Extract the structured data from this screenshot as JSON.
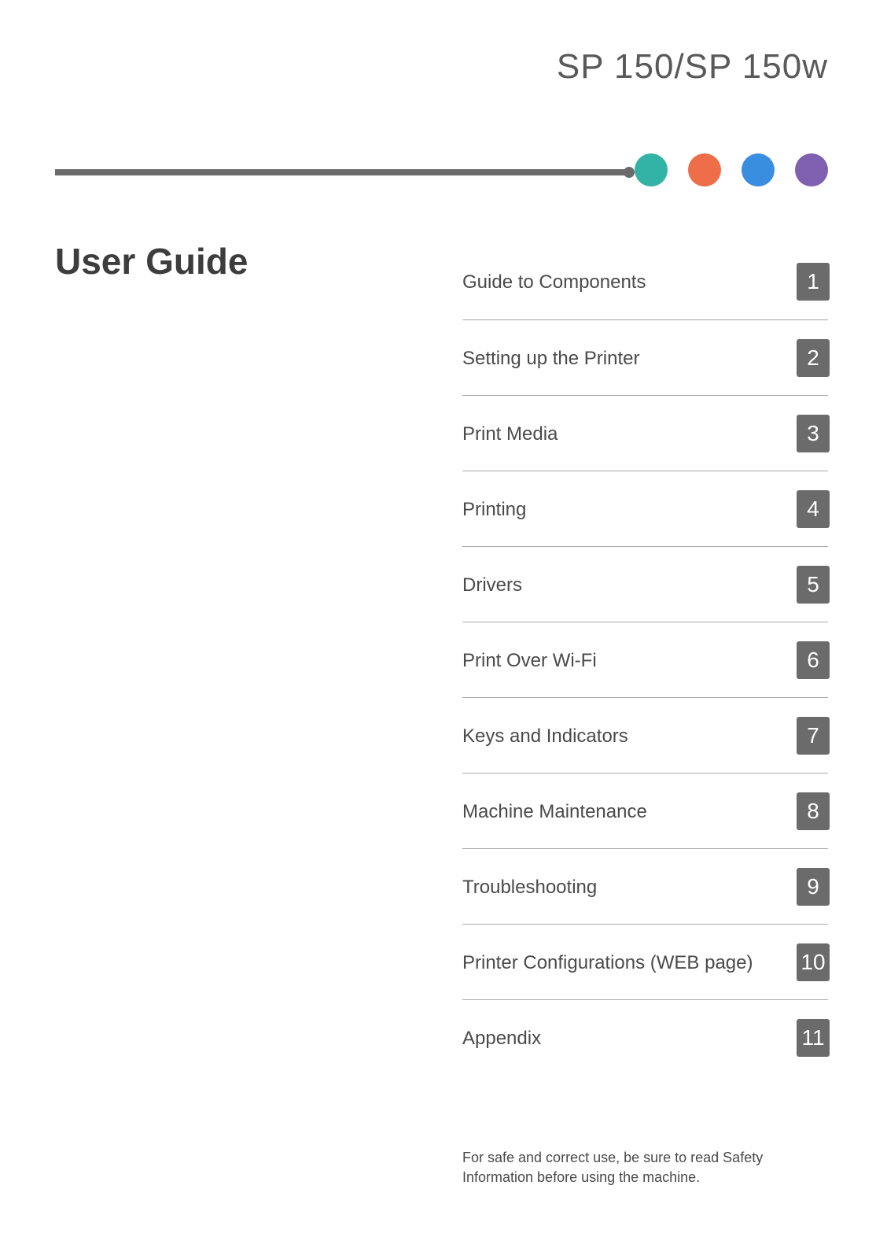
{
  "product_title": "SP 150/SP 150w",
  "main_title": "User Guide",
  "rule_color": "#6b6b6b",
  "dot_colors": [
    "#33b3a6",
    "#ed6e49",
    "#3a8ee0",
    "#7e5fb0"
  ],
  "toc": [
    {
      "label": "Guide to Components",
      "number": "1"
    },
    {
      "label": "Setting up the Printer",
      "number": "2"
    },
    {
      "label": "Print Media",
      "number": "3"
    },
    {
      "label": "Printing",
      "number": "4"
    },
    {
      "label": "Drivers",
      "number": "5"
    },
    {
      "label": "Print Over Wi-Fi",
      "number": "6"
    },
    {
      "label": "Keys and Indicators",
      "number": "7"
    },
    {
      "label": "Machine Maintenance",
      "number": "8"
    },
    {
      "label": "Troubleshooting",
      "number": "9"
    },
    {
      "label": "Printer Configurations (WEB page)",
      "number": "10"
    },
    {
      "label": "Appendix",
      "number": "11"
    }
  ],
  "toc_number_bg": "#6b6b6b",
  "toc_number_color": "#ffffff",
  "footer_note": "For safe and correct use, be sure to read Safety Information before using the machine."
}
